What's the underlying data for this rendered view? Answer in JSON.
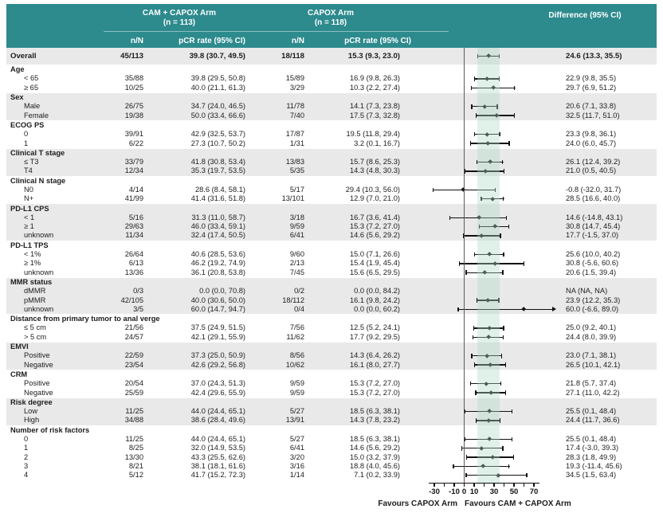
{
  "header": {
    "arm1_title": "CAM + CAPOX Arm",
    "arm1_n": "(n = 113)",
    "arm2_title": "CAPOX Arm",
    "arm2_n": "(n = 118)",
    "difference_title": "Difference (95% CI)",
    "col_nn_1": "n/N",
    "col_pcr_1": "pCR rate (95% CI)",
    "col_nn_2": "n/N",
    "col_pcr_2": "pCR rate (95% CI)"
  },
  "axis": {
    "favours_left": "Favours CAPOX Arm",
    "favours_right": "Favours CAM + CAPOX Arm"
  },
  "colors": {
    "teal": "#2d8a8d",
    "shade": "#e9e9e9",
    "band": "rgba(173,219,201,0.38)",
    "refline": "#5a5a5a",
    "marker": "#111111"
  },
  "blocks": [
    {
      "shade": true,
      "rows": [
        {
          "type": "overall",
          "label": "Overall",
          "nn1": "45/113",
          "pcr1": "39.8 (30.7, 49.5)",
          "nn2": "18/118",
          "pcr2": "15.3 (9.3, 23.0)",
          "diff": "24.6 (13.3, 35.5)",
          "pt": 0
        }
      ]
    },
    {
      "shade": false,
      "rows": [
        {
          "type": "group",
          "label": "Age"
        },
        {
          "type": "item",
          "label": "< 65",
          "nn1": "35/88",
          "pcr1": "39.8 (29.5, 50.8)",
          "nn2": "15/89",
          "pcr2": "16.9 (9.8, 26.3)",
          "diff": "22.9 (9.8, 35.5)",
          "pt": 1
        },
        {
          "type": "item",
          "label": "≥ 65",
          "nn1": "10/25",
          "pcr1": "40.0 (21.1, 61.3)",
          "nn2": "3/29",
          "pcr2": "10.3 (2.2, 27.4)",
          "diff": "29.7 (6.9, 51.2)",
          "pt": 2
        }
      ]
    },
    {
      "shade": true,
      "rows": [
        {
          "type": "group",
          "label": "Sex"
        },
        {
          "type": "item",
          "label": "Male",
          "nn1": "26/75",
          "pcr1": "34.7 (24.0, 46.5)",
          "nn2": "11/78",
          "pcr2": "14.1 (7.3, 23.8)",
          "diff": "20.6 (7.1, 33.8)",
          "pt": 3
        },
        {
          "type": "item",
          "label": "Female",
          "nn1": "19/38",
          "pcr1": "50.0 (33.4, 66.6)",
          "nn2": "7/40",
          "pcr2": "17.5 (7.3, 32.8)",
          "diff": "32.5 (11.7, 51.0)",
          "pt": 4
        }
      ]
    },
    {
      "shade": false,
      "rows": [
        {
          "type": "group",
          "label": "ECOG PS"
        },
        {
          "type": "item",
          "label": "0",
          "nn1": "39/91",
          "pcr1": "42.9 (32.5, 53.7)",
          "nn2": "17/87",
          "pcr2": "19.5 (11.8, 29.4)",
          "diff": "23.3 (9.8, 36.1)",
          "pt": 5
        },
        {
          "type": "item",
          "label": "1",
          "nn1": "6/22",
          "pcr1": "27.3 (10.7, 50.2)",
          "nn2": "1/31",
          "pcr2": "3.2 (0.1, 16.7)",
          "diff": "24.0 (6.0, 45.7)",
          "pt": 6
        }
      ]
    },
    {
      "shade": true,
      "rows": [
        {
          "type": "group",
          "label": "Clinical T stage"
        },
        {
          "type": "item",
          "label": "≤ T3",
          "nn1": "33/79",
          "pcr1": "41.8 (30.8, 53.4)",
          "nn2": "13/83",
          "pcr2": "15.7 (8.6, 25.3)",
          "diff": "26.1 (12.4, 39.2)",
          "pt": 7
        },
        {
          "type": "item",
          "label": "T4",
          "nn1": "12/34",
          "pcr1": "35.3 (19.7, 53.5)",
          "nn2": "5/35",
          "pcr2": "14.3 (4.8, 30.3)",
          "diff": "21.0 (0.5, 40.5)",
          "pt": 8
        }
      ]
    },
    {
      "shade": false,
      "rows": [
        {
          "type": "group",
          "label": "Clinical N stage"
        },
        {
          "type": "item",
          "label": "N0",
          "nn1": "4/14",
          "pcr1": "28.6 (8.4, 58.1)",
          "nn2": "5/17",
          "pcr2": "29.4 (10.3, 56.0)",
          "diff": "-0.8 (-32.0, 31.7)",
          "pt": 9
        },
        {
          "type": "item",
          "label": "N+",
          "nn1": "41/99",
          "pcr1": "41.4 (31.6, 51.8)",
          "nn2": "13/101",
          "pcr2": "12.9 (7.0, 21.0)",
          "diff": "28.5 (16.6, 40.0)",
          "pt": 10
        }
      ]
    },
    {
      "shade": true,
      "rows": [
        {
          "type": "group",
          "label": "PD-L1 CPS"
        },
        {
          "type": "item",
          "label": "< 1",
          "nn1": "5/16",
          "pcr1": "31.3 (11.0, 58.7)",
          "nn2": "3/18",
          "pcr2": "16.7 (3.6, 41.4)",
          "diff": "14.6 (-14.8, 43.1)",
          "pt": 11
        },
        {
          "type": "item",
          "label": "≥ 1",
          "nn1": "29/63",
          "pcr1": "46.0 (33.4, 59.1)",
          "nn2": "9/59",
          "pcr2": "15.3 (7.2, 27.0)",
          "diff": "30.8 (14.7, 45.4)",
          "pt": 12
        },
        {
          "type": "item",
          "label": "unknown",
          "nn1": "11/34",
          "pcr1": "32.4 (17.4, 50.5)",
          "nn2": "6/41",
          "pcr2": "14.6 (5.6, 29.2)",
          "diff": "17.7 (-1.5, 37.0)",
          "pt": 13
        }
      ]
    },
    {
      "shade": false,
      "rows": [
        {
          "type": "group",
          "label": "PD-L1 TPS"
        },
        {
          "type": "item",
          "label": "< 1%",
          "nn1": "26/64",
          "pcr1": "40.6 (28.5, 53.6)",
          "nn2": "9/60",
          "pcr2": "15.0 (7.1, 26.6)",
          "diff": "25.6 (10.0, 40.2)",
          "pt": 14
        },
        {
          "type": "item",
          "label": "≥ 1%",
          "nn1": "6/13",
          "pcr1": "46.2 (19.2, 74.9)",
          "nn2": "2/13",
          "pcr2": "15.4 (1.9, 45.4)",
          "diff": "30.8 (-5.6, 60.6)",
          "pt": 15
        },
        {
          "type": "item",
          "label": "unknown",
          "nn1": "13/36",
          "pcr1": "36.1 (20.8, 53.8)",
          "nn2": "7/45",
          "pcr2": "15.6 (6.5, 29.5)",
          "diff": "20.6 (1.5, 39.4)",
          "pt": 16
        }
      ]
    },
    {
      "shade": true,
      "rows": [
        {
          "type": "group",
          "label": "MMR status"
        },
        {
          "type": "item",
          "label": "dMMR",
          "nn1": "0/3",
          "pcr1": "0.0 (0.0, 70.8)",
          "nn2": "0/2",
          "pcr2": "0.0 (0.0, 84.2)",
          "diff": "NA (NA, NA)",
          "pt": 17
        },
        {
          "type": "item",
          "label": "pMMR",
          "nn1": "42/105",
          "pcr1": "40.0 (30.6, 50.0)",
          "nn2": "18/112",
          "pcr2": "16.1 (9.8, 24.2)",
          "diff": "23.9 (12.2, 35.3)",
          "pt": 18
        },
        {
          "type": "item",
          "label": "unknown",
          "nn1": "3/5",
          "pcr1": "60.0 (14.7, 94.7)",
          "nn2": "0/4",
          "pcr2": "0.0 (0.0, 60.2)",
          "diff": "60.0 (-6.6, 89.0)",
          "pt": 19
        }
      ]
    },
    {
      "shade": false,
      "rows": [
        {
          "type": "group",
          "label": "Distance from primary tumor to anal verge"
        },
        {
          "type": "item",
          "label": "≤ 5 cm",
          "nn1": "21/56",
          "pcr1": "37.5 (24.9, 51.5)",
          "nn2": "7/56",
          "pcr2": "12.5 (5.2, 24.1)",
          "diff": "25.0 (9.2, 40.1)",
          "pt": 20
        },
        {
          "type": "item",
          "label": "> 5 cm",
          "nn1": "24/57",
          "pcr1": "42.1 (29.1, 55.9)",
          "nn2": "11/62",
          "pcr2": "17.7 (9.2, 29.5)",
          "diff": "24.4 (8.0, 39.9)",
          "pt": 21
        }
      ]
    },
    {
      "shade": true,
      "rows": [
        {
          "type": "group",
          "label": "EMVI"
        },
        {
          "type": "item",
          "label": "Positive",
          "nn1": "22/59",
          "pcr1": "37.3 (25.0, 50.9)",
          "nn2": "8/56",
          "pcr2": "14.3 (6.4, 26.2)",
          "diff": "23.0 (7.1, 38.1)",
          "pt": 22
        },
        {
          "type": "item",
          "label": "Negative",
          "nn1": "23/54",
          "pcr1": "42.6 (29.2, 56.8)",
          "nn2": "10/62",
          "pcr2": "16.1 (8.0, 27.7)",
          "diff": "26.5 (10.1, 42.1)",
          "pt": 23
        }
      ]
    },
    {
      "shade": false,
      "rows": [
        {
          "type": "group",
          "label": "CRM"
        },
        {
          "type": "item",
          "label": "Positive",
          "nn1": "20/54",
          "pcr1": "37.0 (24.3, 51.3)",
          "nn2": "9/59",
          "pcr2": "15.3 (7.2, 27.0)",
          "diff": "21.8 (5.7, 37.4)",
          "pt": 24
        },
        {
          "type": "item",
          "label": "Negative",
          "nn1": "25/59",
          "pcr1": "42.4 (29.6, 55.9)",
          "nn2": "9/59",
          "pcr2": "15.3 (7.2, 27.0)",
          "diff": "27.1 (11.0, 42.2)",
          "pt": 25
        }
      ]
    },
    {
      "shade": true,
      "rows": [
        {
          "type": "group",
          "label": "Risk degree"
        },
        {
          "type": "item",
          "label": "Low",
          "nn1": "11/25",
          "pcr1": "44.0 (24.4, 65.1)",
          "nn2": "5/27",
          "pcr2": "18.5 (6.3, 38.1)",
          "diff": "25.5 (0.1, 48.4)",
          "pt": 26
        },
        {
          "type": "item",
          "label": "High",
          "nn1": "34/88",
          "pcr1": "38.6 (28.4, 49.6)",
          "nn2": "13/91",
          "pcr2": "14.3 (7.8, 23.2)",
          "diff": "24.4 (11.7, 36.6)",
          "pt": 27
        }
      ]
    },
    {
      "shade": false,
      "rows": [
        {
          "type": "group",
          "label": "Number of risk factors"
        },
        {
          "type": "item",
          "label": "0",
          "nn1": "11/25",
          "pcr1": "44.0 (24.4, 65.1)",
          "nn2": "5/27",
          "pcr2": "18.5 (6.3, 38.1)",
          "diff": "25.5 (0.1, 48.4)",
          "pt": 28
        },
        {
          "type": "item",
          "label": "1",
          "nn1": "8/25",
          "pcr1": "32.0 (14.9, 53.5)",
          "nn2": "6/41",
          "pcr2": "14.6 (5.6, 29.2)",
          "diff": "17.4 (-3.0, 39.3)",
          "pt": 29
        },
        {
          "type": "item",
          "label": "2",
          "nn1": "13/30",
          "pcr1": "43.3 (25.5, 62.6)",
          "nn2": "3/20",
          "pcr2": "15.0 (3.2, 37.9)",
          "diff": "28.3 (1.8, 49.9)",
          "pt": 30
        },
        {
          "type": "item",
          "label": "3",
          "nn1": "8/21",
          "pcr1": "38.1 (18.1, 61.6)",
          "nn2": "3/16",
          "pcr2": "18.8 (4.0, 45.6)",
          "diff": "19.3 (-11.4, 45.6)",
          "pt": 31
        },
        {
          "type": "item",
          "label": "4",
          "nn1": "5/12",
          "pcr1": "41.7 (15.2, 72.3)",
          "nn2": "1/14",
          "pcr2": "7.1 (0.2, 33.9)",
          "diff": "34.5 (1.5, 63.4)",
          "pt": 32
        }
      ]
    }
  ],
  "chart_data": {
    "type": "scatter",
    "subtype": "forest-plot",
    "xlim": [
      -30,
      70
    ],
    "xticks_labeled": [
      -30,
      -10,
      0,
      10,
      30,
      50,
      70
    ],
    "xtick_step": 10,
    "reference_x": 0,
    "shaded_band": [
      13.3,
      35.5
    ],
    "xlabel_left": "Favours CAPOX Arm",
    "xlabel_right": "Favours CAM + CAPOX Arm",
    "points": [
      {
        "label": "Overall",
        "est": 24.6,
        "lo": 13.3,
        "hi": 35.5
      },
      {
        "label": "Age: < 65",
        "est": 22.9,
        "lo": 9.8,
        "hi": 35.5
      },
      {
        "label": "Age: ≥ 65",
        "est": 29.7,
        "lo": 6.9,
        "hi": 51.2
      },
      {
        "label": "Sex: Male",
        "est": 20.6,
        "lo": 7.1,
        "hi": 33.8
      },
      {
        "label": "Sex: Female",
        "est": 32.5,
        "lo": 11.7,
        "hi": 51.0
      },
      {
        "label": "ECOG PS: 0",
        "est": 23.3,
        "lo": 9.8,
        "hi": 36.1
      },
      {
        "label": "ECOG PS: 1",
        "est": 24.0,
        "lo": 6.0,
        "hi": 45.7
      },
      {
        "label": "Clinical T stage: ≤ T3",
        "est": 26.1,
        "lo": 12.4,
        "hi": 39.2
      },
      {
        "label": "Clinical T stage: T4",
        "est": 21.0,
        "lo": 0.5,
        "hi": 40.5
      },
      {
        "label": "Clinical N stage: N0",
        "est": -0.8,
        "lo": -32.0,
        "hi": 31.7
      },
      {
        "label": "Clinical N stage: N+",
        "est": 28.5,
        "lo": 16.6,
        "hi": 40.0
      },
      {
        "label": "PD-L1 CPS: < 1",
        "est": 14.6,
        "lo": -14.8,
        "hi": 43.1
      },
      {
        "label": "PD-L1 CPS: ≥ 1",
        "est": 30.8,
        "lo": 14.7,
        "hi": 45.4
      },
      {
        "label": "PD-L1 CPS: unknown",
        "est": 17.7,
        "lo": -1.5,
        "hi": 37.0
      },
      {
        "label": "PD-L1 TPS: < 1%",
        "est": 25.6,
        "lo": 10.0,
        "hi": 40.2
      },
      {
        "label": "PD-L1 TPS: ≥ 1%",
        "est": 30.8,
        "lo": -5.6,
        "hi": 60.6
      },
      {
        "label": "PD-L1 TPS: unknown",
        "est": 20.6,
        "lo": 1.5,
        "hi": 39.4
      },
      {
        "label": "MMR status: dMMR",
        "est": null,
        "lo": null,
        "hi": null
      },
      {
        "label": "MMR status: pMMR",
        "est": 23.9,
        "lo": 12.2,
        "hi": 35.3
      },
      {
        "label": "MMR status: unknown",
        "est": 60.0,
        "lo": -6.6,
        "hi": 89.0,
        "arrow_right": true
      },
      {
        "label": "Distance from primary tumor to anal verge: ≤ 5 cm",
        "est": 25.0,
        "lo": 9.2,
        "hi": 40.1
      },
      {
        "label": "Distance from primary tumor to anal verge: > 5 cm",
        "est": 24.4,
        "lo": 8.0,
        "hi": 39.9
      },
      {
        "label": "EMVI: Positive",
        "est": 23.0,
        "lo": 7.1,
        "hi": 38.1
      },
      {
        "label": "EMVI: Negative",
        "est": 26.5,
        "lo": 10.1,
        "hi": 42.1
      },
      {
        "label": "CRM: Positive",
        "est": 21.8,
        "lo": 5.7,
        "hi": 37.4
      },
      {
        "label": "CRM: Negative",
        "est": 27.1,
        "lo": 11.0,
        "hi": 42.2
      },
      {
        "label": "Risk degree: Low",
        "est": 25.5,
        "lo": 0.1,
        "hi": 48.4
      },
      {
        "label": "Risk degree: High",
        "est": 24.4,
        "lo": 11.7,
        "hi": 36.6
      },
      {
        "label": "Number of risk factors: 0",
        "est": 25.5,
        "lo": 0.1,
        "hi": 48.4
      },
      {
        "label": "Number of risk factors: 1",
        "est": 17.4,
        "lo": -3.0,
        "hi": 39.3
      },
      {
        "label": "Number of risk factors: 2",
        "est": 28.3,
        "lo": 1.8,
        "hi": 49.9
      },
      {
        "label": "Number of risk factors: 3",
        "est": 19.3,
        "lo": -11.4,
        "hi": 45.6
      },
      {
        "label": "Number of risk factors: 4",
        "est": 34.5,
        "lo": 1.5,
        "hi": 63.4
      }
    ]
  }
}
